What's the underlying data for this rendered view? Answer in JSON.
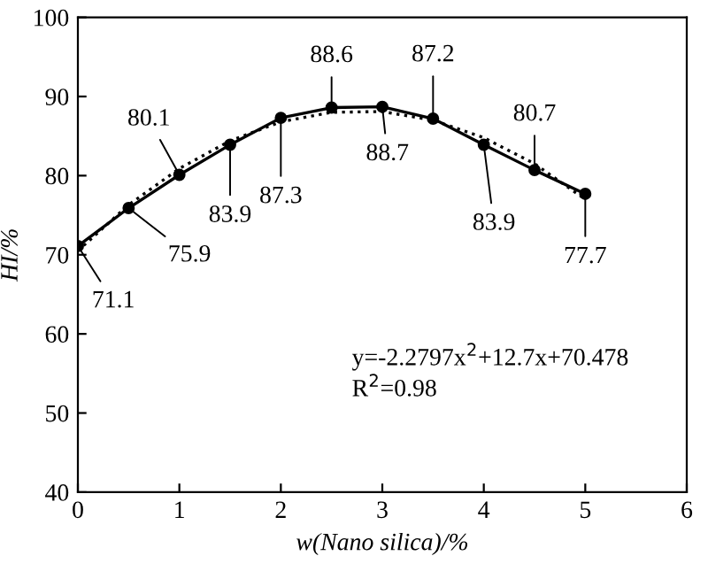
{
  "chart_data": {
    "type": "line",
    "xlabel": "w(Nano silica)/%",
    "ylabel": "HI/%",
    "xlim": [
      0,
      6
    ],
    "ylim": [
      40,
      100
    ],
    "xticks": [
      0,
      1,
      2,
      3,
      4,
      5,
      6
    ],
    "yticks": [
      40,
      50,
      60,
      70,
      80,
      90,
      100
    ],
    "grid": false,
    "legend": false,
    "x": [
      0,
      0.5,
      1,
      1.5,
      2,
      2.5,
      3,
      3.5,
      4,
      4.5,
      5
    ],
    "series": [
      {
        "color": "#000000",
        "marker": "circle",
        "line_style": "solid",
        "values": [
          71.1,
          75.9,
          80.1,
          83.9,
          87.3,
          88.6,
          88.7,
          87.2,
          83.9,
          80.7,
          77.7
        ],
        "value_labels": [
          "71.1",
          "75.9",
          "80.1",
          "83.9",
          "87.3",
          "88.6",
          "88.7",
          "87.2",
          "83.9",
          "80.7",
          "77.7"
        ]
      },
      {
        "color": "#000000",
        "marker": "none",
        "line_style": "dotted",
        "values": [
          70.5,
          76.3,
          80.9,
          84.4,
          86.8,
          88.0,
          88.1,
          87.0,
          84.8,
          81.5,
          77.0
        ]
      }
    ],
    "annotations": [
      "y=-2.2797x$^{2}$+12.7x+70.478",
      "R$^{2}$=0.98"
    ]
  }
}
